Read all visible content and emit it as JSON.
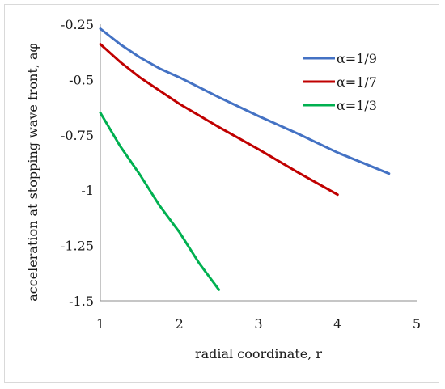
{
  "chart_data": {
    "type": "line",
    "title": "",
    "xlabel": "radial coordinate, r",
    "ylabel": "acceleration at stopping wave front, aφ",
    "xlim": [
      1,
      5
    ],
    "ylim": [
      -1.5,
      -0.25
    ],
    "x_ticks": [
      "1",
      "2",
      "3",
      "4",
      "5"
    ],
    "y_ticks": [
      "-0.25",
      "-0.5",
      "-0.75",
      "-1",
      "-1.25",
      "-1.5"
    ],
    "grid": false,
    "legend": "top-right",
    "series": [
      {
        "name": "α=1/9",
        "color": "#4472c4",
        "x": [
          1,
          1.25,
          1.5,
          1.75,
          2,
          2.5,
          3,
          3.5,
          4,
          4.65
        ],
        "y": [
          -0.27,
          -0.34,
          -0.4,
          -0.45,
          -0.49,
          -0.58,
          -0.665,
          -0.745,
          -0.83,
          -0.925
        ]
      },
      {
        "name": "α=1/7",
        "color": "#c00000",
        "x": [
          1,
          1.25,
          1.5,
          1.75,
          2,
          2.5,
          3,
          3.5,
          4
        ],
        "y": [
          -0.34,
          -0.42,
          -0.49,
          -0.55,
          -0.61,
          -0.715,
          -0.815,
          -0.92,
          -1.02
        ]
      },
      {
        "name": "α=1/3",
        "color": "#00b050",
        "x": [
          1,
          1.25,
          1.5,
          1.75,
          2,
          2.25,
          2.5
        ],
        "y": [
          -0.65,
          -0.8,
          -0.93,
          -1.07,
          -1.19,
          -1.33,
          -1.45
        ]
      }
    ]
  }
}
